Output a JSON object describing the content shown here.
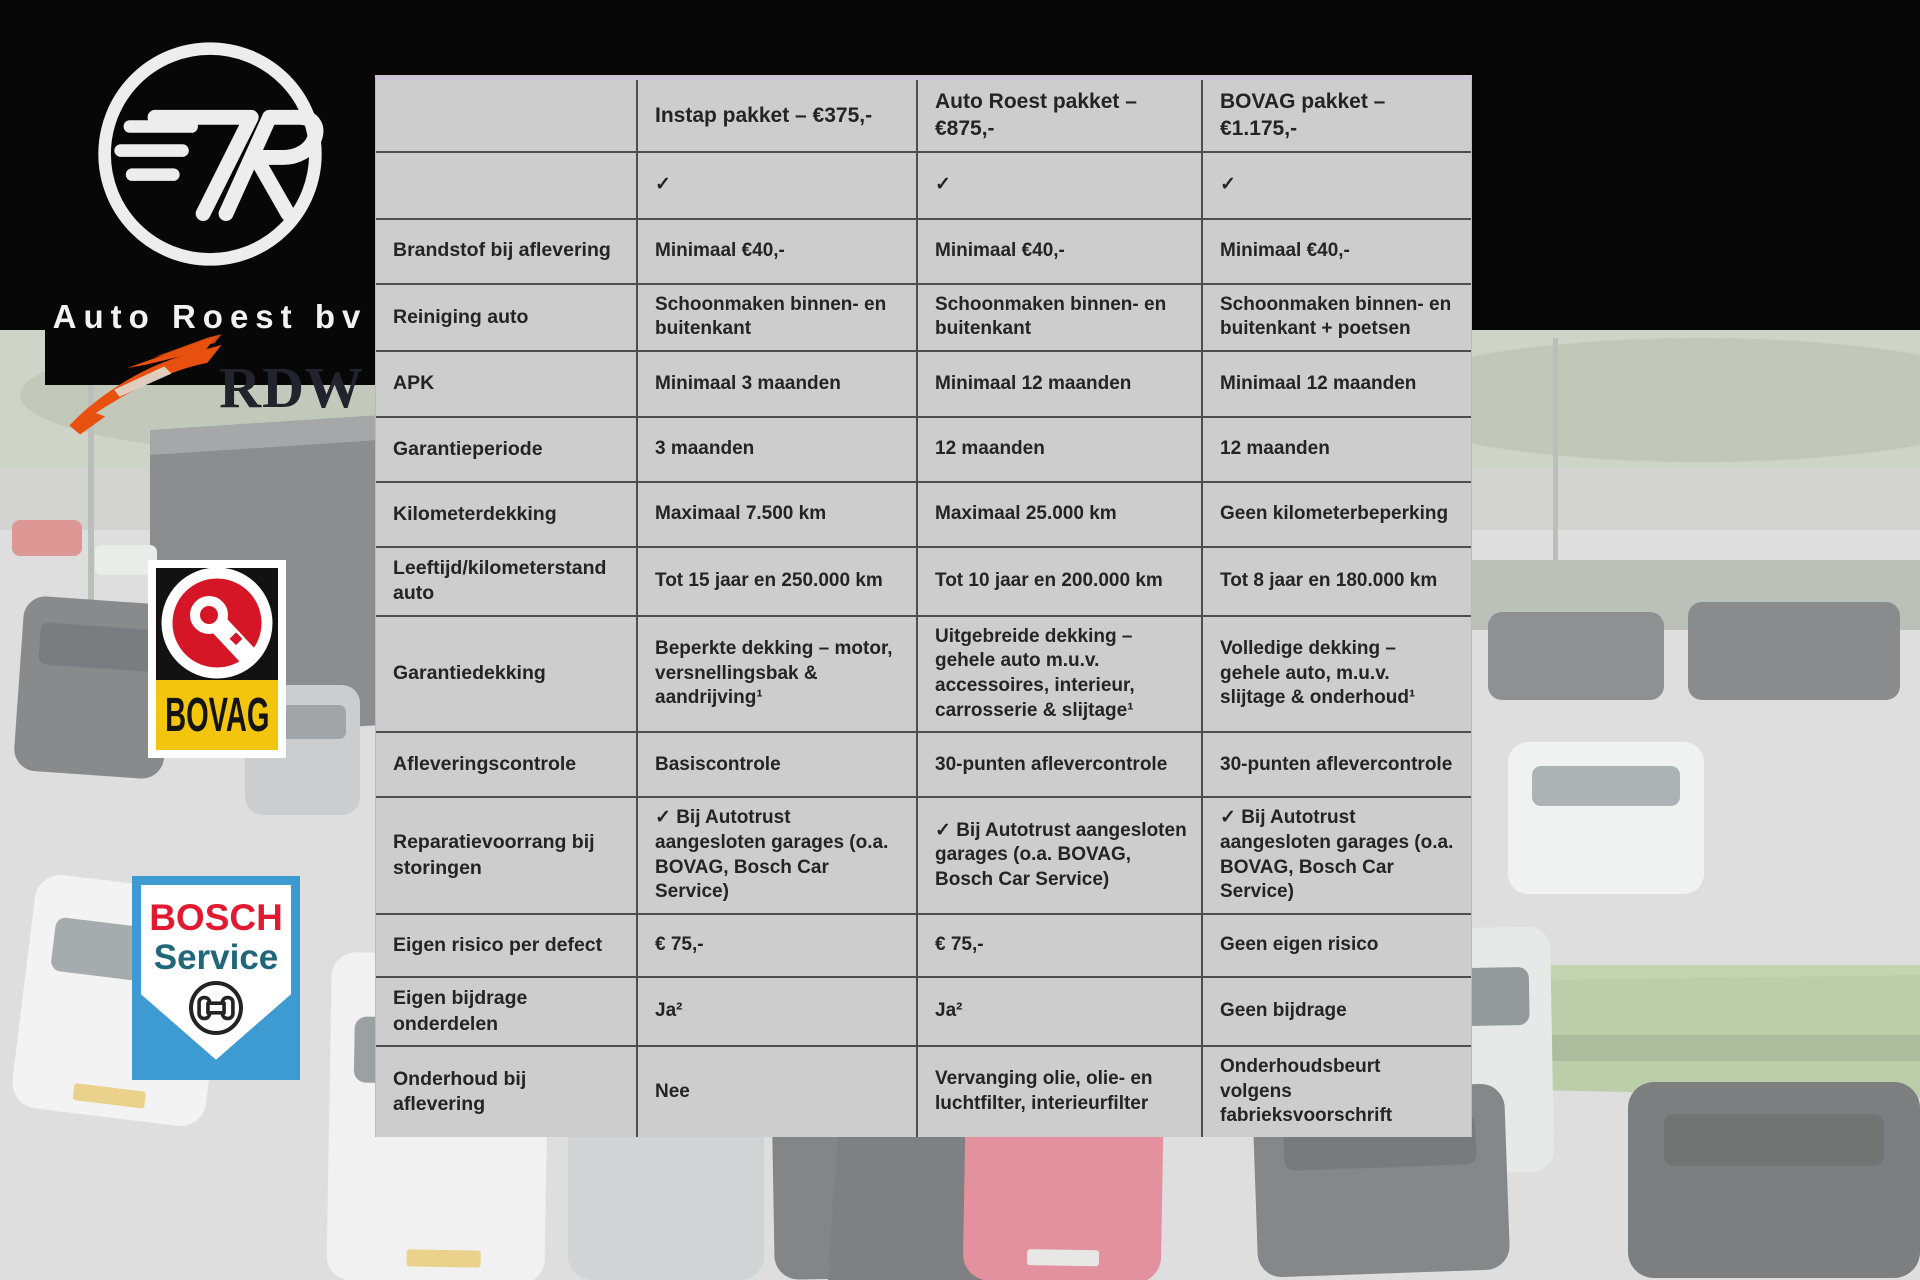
{
  "branding": {
    "company_name": "Auto Roest bv"
  },
  "logos": {
    "rdw": {
      "label": "RDW",
      "wing_color": "#e8500f",
      "text_color": "#23232d"
    },
    "bovag": {
      "label": "BOVAG",
      "yellow": "#f3c50d",
      "red": "#d51626",
      "black": "#121212"
    },
    "bosch": {
      "line1": "BOSCH",
      "line2": "Service",
      "red": "#e11931",
      "teal": "#20677a",
      "blue": "#3e9bd2"
    }
  },
  "table": {
    "background": "#cdcdcd",
    "grid_color": "#4e4e4e",
    "columns": [
      "",
      "Instap pakket – €375,-",
      "Auto Roest pakket – €875,-",
      "BOVAG pakket – €1.175,-"
    ],
    "rows": [
      {
        "label": "",
        "cells": [
          "✓",
          "✓",
          "✓"
        ]
      },
      {
        "label": "Brandstof bij aflevering",
        "cells": [
          "Minimaal €40,-",
          "Minimaal €40,-",
          "Minimaal €40,-"
        ]
      },
      {
        "label": "Reiniging auto",
        "cells": [
          "Schoonmaken binnen- en buitenkant",
          "Schoonmaken binnen- en buitenkant",
          "Schoonmaken binnen- en buitenkant + poetsen"
        ]
      },
      {
        "label": "APK",
        "cells": [
          "Minimaal 3 maanden",
          "Minimaal 12 maanden",
          "Minimaal 12 maanden"
        ]
      },
      {
        "label": "Garantieperiode",
        "cells": [
          "3 maanden",
          "12 maanden",
          "12 maanden"
        ]
      },
      {
        "label": "Kilometerdekking",
        "cells": [
          "Maximaal 7.500 km",
          "Maximaal 25.000 km",
          "Geen kilometerbeperking"
        ]
      },
      {
        "label": "Leeftijd/kilometerstand auto",
        "cells": [
          "Tot 15 jaar en 250.000 km",
          "Tot 10 jaar en 200.000 km",
          "Tot 8 jaar en 180.000 km"
        ]
      },
      {
        "label": "Garantiedekking",
        "cells": [
          "Beperkte dekking – motor, versnellingsbak & aandrijving¹",
          "Uitgebreide dekking – gehele auto m.u.v. accessoires, interieur, carrosserie & slijtage¹",
          "Volledige dekking – gehele auto, m.u.v. slijtage & onderhoud¹"
        ]
      },
      {
        "label": "Afleveringscontrole",
        "cells": [
          "Basiscontrole",
          "30-punten aflevercontrole",
          "30-punten aflevercontrole"
        ]
      },
      {
        "label": "Reparatievoorrang bij storingen",
        "cells": [
          "✓ Bij Autotrust aangesloten garages (o.a. BOVAG, Bosch Car Service)",
          "✓ Bij Autotrust aangesloten garages (o.a. BOVAG, Bosch Car Service)",
          "✓ Bij Autotrust aangesloten garages (o.a. BOVAG, Bosch Car Service)"
        ]
      },
      {
        "label": "Eigen risico per defect",
        "cells": [
          "€ 75,-",
          "€ 75,-",
          "Geen eigen risico"
        ]
      },
      {
        "label": "Eigen bijdrage onderdelen",
        "cells": [
          "Ja²",
          "Ja²",
          "Geen bijdrage"
        ]
      },
      {
        "label": "Onderhoud bij aflevering",
        "cells": [
          "Nee",
          "Vervanging olie, olie- en luchtfilter, interieurfilter",
          "Onderhoudsbeurt volgens fabrieksvoorschrift"
        ]
      }
    ]
  }
}
